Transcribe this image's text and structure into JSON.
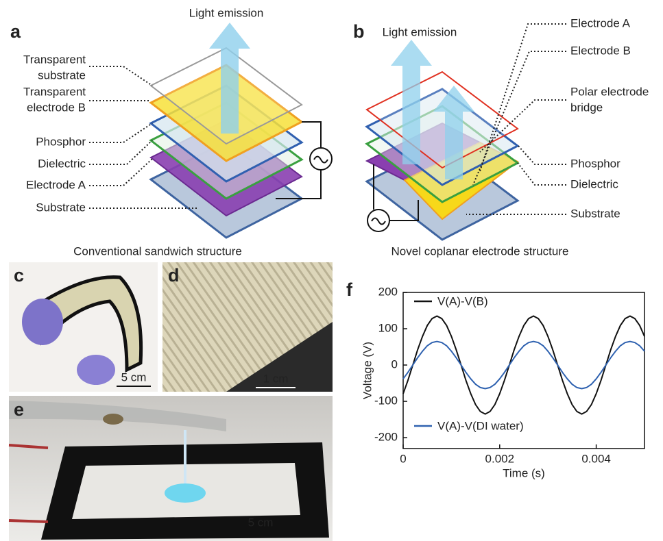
{
  "panel_a": {
    "label": "a",
    "emission": "Light emission",
    "layers": [
      [
        "Transparent",
        "substrate"
      ],
      [
        "Transparent",
        "electrode B"
      ],
      [
        "Phosphor"
      ],
      [
        "Dielectric"
      ],
      [
        "Electrode A"
      ],
      [
        "Substrate"
      ]
    ],
    "caption": "Conventional sandwich structure"
  },
  "panel_b": {
    "label": "b",
    "emission": "Light emission",
    "layers": [
      [
        "Electrode A"
      ],
      [
        "Electrode B"
      ],
      [
        "Polar electrode",
        "bridge"
      ],
      [
        "Phosphor"
      ],
      [
        "Dielectric"
      ],
      [
        "Substrate"
      ]
    ],
    "caption": "Novel coplanar electrode structure"
  },
  "panel_c": {
    "label": "c",
    "scale": "5 cm"
  },
  "panel_d": {
    "label": "d",
    "scale": "1 cm"
  },
  "panel_e": {
    "label": "e",
    "scale": "5 cm"
  },
  "panel_f": {
    "label": "f"
  },
  "chart_data": {
    "type": "line",
    "x_label": "Time (s)",
    "y_label": "Voltage (V)",
    "x": [
      0,
      0.0001,
      0.0002,
      0.0003,
      0.0004,
      0.0005,
      0.0006,
      0.0007,
      0.0008,
      0.0009,
      0.001,
      0.0011,
      0.0012,
      0.0013,
      0.0014,
      0.0015,
      0.0016,
      0.0017,
      0.0018,
      0.0019,
      0.002,
      0.0021,
      0.0022,
      0.0023,
      0.0024,
      0.0025,
      0.0026,
      0.0027,
      0.0028,
      0.0029,
      0.003,
      0.0031,
      0.0032,
      0.0033,
      0.0034,
      0.0035,
      0.0036,
      0.0037,
      0.0038,
      0.0039,
      0.004,
      0.0041,
      0.0042,
      0.0043,
      0.0044,
      0.0045,
      0.0046,
      0.0047,
      0.0048,
      0.0049,
      0.005
    ],
    "series": [
      {
        "name": "V(A)-V(B)",
        "color": "#111111",
        "values": [
          -79,
          -42,
          0,
          42,
          79,
          109,
          128,
          135,
          128,
          109,
          79,
          42,
          0,
          -42,
          -79,
          -109,
          -128,
          -135,
          -128,
          -109,
          -79,
          -42,
          0,
          42,
          79,
          109,
          128,
          135,
          128,
          109,
          79,
          42,
          0,
          -42,
          -79,
          -109,
          -128,
          -135,
          -128,
          -109,
          -79,
          -42,
          0,
          42,
          79,
          109,
          128,
          135,
          128,
          109,
          79
        ]
      },
      {
        "name": "V(A)-V(DI water)",
        "color": "#2f62b0",
        "values": [
          -38,
          -20,
          0,
          20,
          38,
          53,
          62,
          65,
          62,
          53,
          38,
          20,
          0,
          -20,
          -38,
          -53,
          -62,
          -65,
          -62,
          -53,
          -38,
          -20,
          0,
          20,
          38,
          53,
          62,
          65,
          62,
          53,
          38,
          20,
          0,
          -20,
          -38,
          -53,
          -62,
          -65,
          -62,
          -53,
          -38,
          -20,
          0,
          20,
          38,
          53,
          62,
          65,
          62,
          53,
          38
        ]
      }
    ],
    "xlim": [
      0,
      0.005
    ],
    "xticks": [
      0,
      0.002,
      0.004
    ],
    "ylim": [
      -230,
      200
    ],
    "yticks": [
      -200,
      -100,
      0,
      100,
      200
    ]
  }
}
